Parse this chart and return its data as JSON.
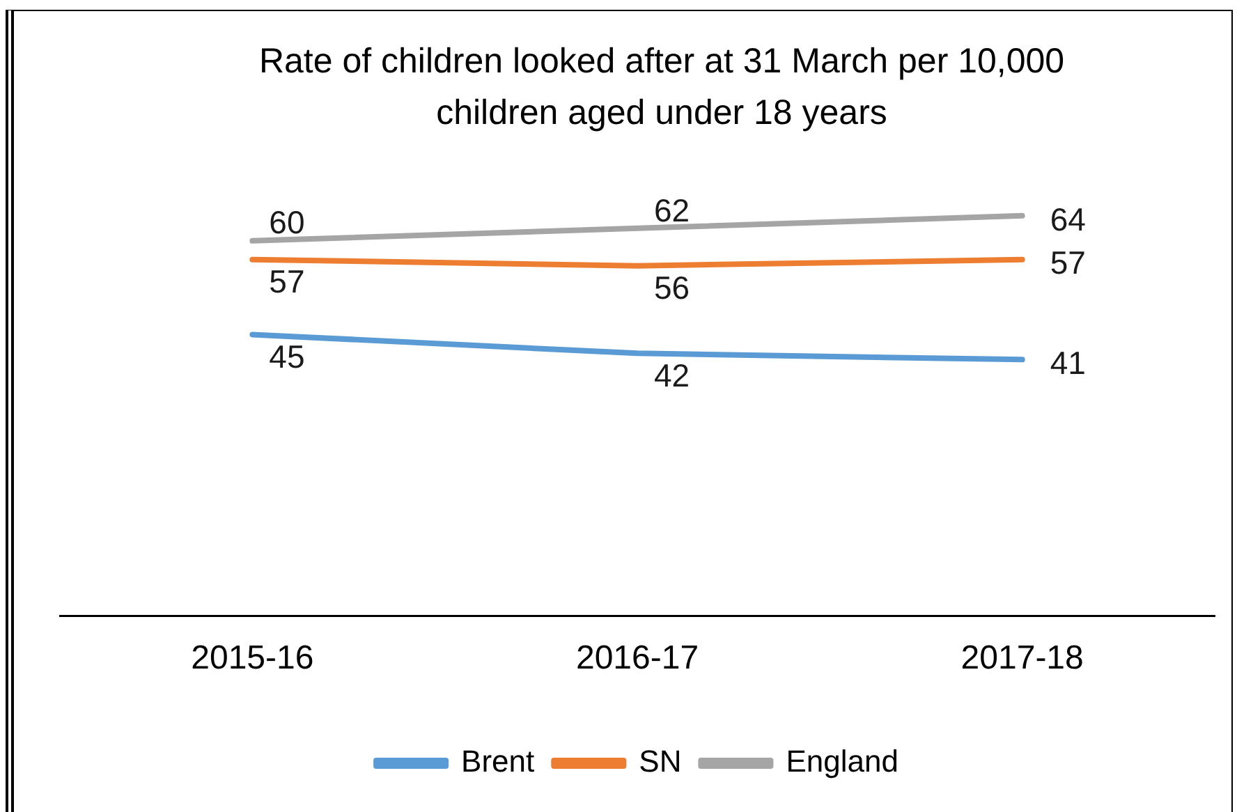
{
  "chart_data": {
    "type": "line",
    "title": "Rate of children looked after at 31 March per 10,000 children aged under 18 years",
    "categories": [
      "2015-16",
      "2016-17",
      "2017-18"
    ],
    "series": [
      {
        "name": "Brent",
        "color": "#5b9bd5",
        "values": [
          45,
          42,
          41
        ]
      },
      {
        "name": "SN",
        "color": "#ed7d31",
        "values": [
          57,
          56,
          57
        ]
      },
      {
        "name": "England",
        "color": "#a5a5a5",
        "values": [
          60,
          62,
          64
        ]
      }
    ],
    "tick_labels": "x",
    "data_labels": true,
    "legend": "bottom",
    "grid": false
  }
}
